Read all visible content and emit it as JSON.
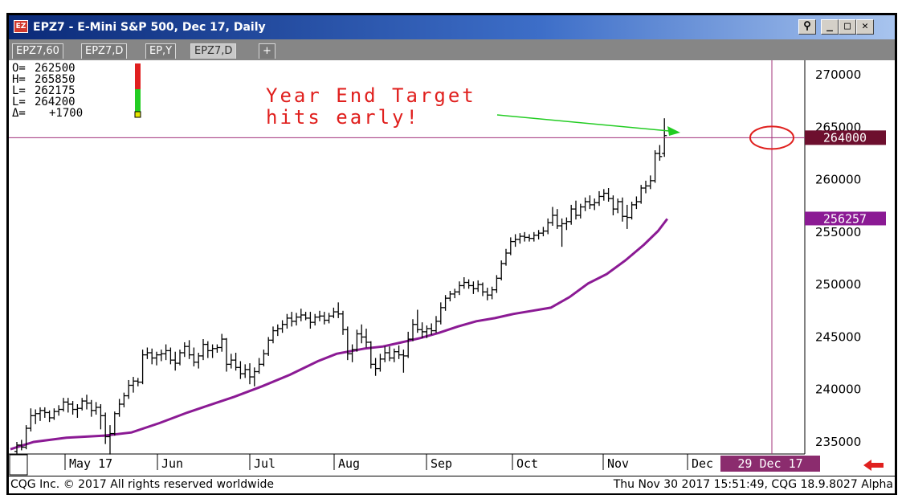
{
  "window": {
    "icon_glyph": "EZ",
    "title": "EPZ7 - E-Mini S&P 500, Dec 17, Daily",
    "buttons": [
      "⚲",
      "_",
      "□",
      "✕"
    ]
  },
  "tabs": [
    {
      "label": "EPZ7,60",
      "active": false
    },
    {
      "label": "EPZ7,D",
      "active": false
    },
    {
      "label": "EP,Y",
      "active": false
    },
    {
      "label": "EPZ7,D",
      "active": true
    },
    {
      "label": "+",
      "active": false
    }
  ],
  "ohlc": {
    "o_label": "O=",
    "o_value": "262500",
    "h_label": "H=",
    "h_value": "265850",
    "l_label": "L=",
    "l_value": "262175",
    "l2_label": "L=",
    "l2_value": "264200",
    "d_label": "Δ=",
    "d_value": "+1700"
  },
  "annotation": {
    "line1": "Year End Target",
    "line2": "hits early!"
  },
  "price_labels": {
    "last": "264000",
    "ma": "256257"
  },
  "date_label": "29 Dec 17",
  "status": {
    "left": "CQG Inc. © 2017 All rights reserved worldwide",
    "right": "Thu Nov 30 2017 15:51:49, CQG 18.9.8027 Alpha"
  },
  "colors": {
    "bars": "#000000",
    "ma_line": "#8b1a94",
    "cursor_line": "#a0307a",
    "annotation_text": "#e0201e",
    "arrow": "#22cc22",
    "circle": "#e0201e",
    "last_price_bg": "#6d0f2e",
    "ma_label_bg": "#8b1a94",
    "date_label_bg": "#8b2c6e",
    "nav_arrow": "#e0201e"
  },
  "chart_data": {
    "type": "ohlc",
    "ylim": [
      233000,
      272000
    ],
    "yticks": [
      "235000",
      "240000",
      "245000",
      "250000",
      "255000",
      "260000",
      "265000",
      "270000"
    ],
    "xticks": [
      "May 17",
      "Jun",
      "Jul",
      "Aug",
      "Sep",
      "Oct",
      "Nov",
      "Dec"
    ],
    "cursor_price": 264000,
    "series": [
      {
        "name": "EPZ7",
        "bars": [
          [
            234100,
            235000,
            233700,
            234700
          ],
          [
            234700,
            235200,
            234200,
            234500
          ],
          [
            234500,
            236600,
            234300,
            236300
          ],
          [
            236300,
            238200,
            236000,
            237500
          ],
          [
            237500,
            238100,
            236700,
            237700
          ],
          [
            237700,
            238300,
            237000,
            238000
          ],
          [
            238000,
            238300,
            237300,
            237800
          ],
          [
            237800,
            238000,
            236900,
            237300
          ],
          [
            237300,
            238200,
            237100,
            237900
          ],
          [
            237900,
            238500,
            237500,
            238100
          ],
          [
            238100,
            239200,
            237900,
            238800
          ],
          [
            238800,
            239200,
            237800,
            238600
          ],
          [
            238600,
            238900,
            237600,
            238100
          ],
          [
            238100,
            238600,
            237300,
            238200
          ],
          [
            238200,
            239200,
            238000,
            238900
          ],
          [
            238900,
            239500,
            238100,
            238700
          ],
          [
            238700,
            239000,
            237400,
            238000
          ],
          [
            238000,
            238800,
            237600,
            238300
          ],
          [
            238300,
            238600,
            236200,
            237500
          ],
          [
            237500,
            237800,
            234800,
            235500
          ],
          [
            235500,
            236600,
            233800,
            235800
          ],
          [
            235800,
            237900,
            235600,
            237700
          ],
          [
            237700,
            239100,
            237400,
            238600
          ],
          [
            238600,
            239700,
            238300,
            239400
          ],
          [
            239400,
            240900,
            239100,
            240400
          ],
          [
            240400,
            241200,
            239700,
            240800
          ],
          [
            240800,
            241100,
            240300,
            240700
          ],
          [
            240700,
            243800,
            240500,
            243300
          ],
          [
            243300,
            244000,
            242900,
            243500
          ],
          [
            243500,
            243900,
            242400,
            243000
          ],
          [
            243000,
            243600,
            242300,
            243300
          ],
          [
            243300,
            243800,
            242700,
            243400
          ],
          [
            243400,
            244300,
            242800,
            243700
          ],
          [
            243700,
            244000,
            242400,
            242800
          ],
          [
            242800,
            243600,
            241800,
            242500
          ],
          [
            242500,
            243800,
            242300,
            243500
          ],
          [
            243500,
            244500,
            243100,
            244100
          ],
          [
            244100,
            244700,
            242900,
            243300
          ],
          [
            243300,
            244000,
            242200,
            242600
          ],
          [
            242600,
            243500,
            242000,
            243200
          ],
          [
            243200,
            244800,
            242800,
            244300
          ],
          [
            244300,
            244600,
            243000,
            243700
          ],
          [
            243700,
            244300,
            243000,
            243900
          ],
          [
            243900,
            244300,
            243500,
            244000
          ],
          [
            244000,
            245300,
            243600,
            244800
          ],
          [
            244800,
            244900,
            241700,
            242400
          ],
          [
            242400,
            243400,
            242000,
            242800
          ],
          [
            242800,
            243500,
            241800,
            242100
          ],
          [
            242100,
            242700,
            241000,
            241500
          ],
          [
            241500,
            242400,
            241100,
            241900
          ],
          [
            241900,
            242500,
            240500,
            241200
          ],
          [
            241200,
            242100,
            240300,
            241700
          ],
          [
            241700,
            243000,
            241500,
            242400
          ],
          [
            242400,
            243800,
            242200,
            243400
          ],
          [
            243400,
            245000,
            243200,
            244700
          ],
          [
            244700,
            246000,
            244400,
            245600
          ],
          [
            245600,
            246200,
            245100,
            245800
          ],
          [
            245800,
            246600,
            245400,
            246200
          ],
          [
            246200,
            247200,
            245800,
            246800
          ],
          [
            246800,
            247400,
            246000,
            246500
          ],
          [
            246500,
            247300,
            246100,
            246900
          ],
          [
            246900,
            247700,
            246500,
            247100
          ],
          [
            247100,
            247400,
            246600,
            246800
          ],
          [
            246800,
            247400,
            245800,
            246400
          ],
          [
            246400,
            247200,
            246100,
            246900
          ],
          [
            246900,
            247500,
            246500,
            247000
          ],
          [
            247000,
            247400,
            246200,
            246600
          ],
          [
            246600,
            247300,
            246300,
            247000
          ],
          [
            247000,
            247800,
            246800,
            247400
          ],
          [
            247400,
            248300,
            246800,
            247200
          ],
          [
            247200,
            247500,
            245200,
            245700
          ],
          [
            245700,
            246000,
            242800,
            243400
          ],
          [
            243400,
            244300,
            242600,
            243800
          ],
          [
            243800,
            245700,
            243600,
            245300
          ],
          [
            245300,
            246200,
            244400,
            245000
          ],
          [
            245000,
            245800,
            244000,
            244500
          ],
          [
            244500,
            244600,
            242000,
            242400
          ],
          [
            242400,
            243000,
            241300,
            242000
          ],
          [
            242000,
            243400,
            241700,
            242900
          ],
          [
            242900,
            244100,
            242600,
            243500
          ],
          [
            243500,
            244100,
            242700,
            243000
          ],
          [
            243000,
            243900,
            242600,
            243600
          ],
          [
            243600,
            244200,
            242900,
            243300
          ],
          [
            243300,
            243800,
            241600,
            243200
          ],
          [
            243200,
            245500,
            243000,
            244800
          ],
          [
            244800,
            246700,
            244600,
            246200
          ],
          [
            246200,
            247600,
            245400,
            245700
          ],
          [
            245700,
            246400,
            244900,
            245500
          ],
          [
            245500,
            246100,
            244900,
            245800
          ],
          [
            245800,
            246300,
            245200,
            245600
          ],
          [
            245600,
            247000,
            245400,
            246500
          ],
          [
            246500,
            248300,
            246200,
            247800
          ],
          [
            247800,
            249000,
            247500,
            248700
          ],
          [
            248700,
            249400,
            248400,
            249100
          ],
          [
            249100,
            249600,
            248700,
            249300
          ],
          [
            249300,
            250300,
            249000,
            249900
          ],
          [
            249900,
            250700,
            249600,
            250200
          ],
          [
            250200,
            250500,
            249600,
            249900
          ],
          [
            249900,
            250300,
            249100,
            249600
          ],
          [
            249600,
            250400,
            249300,
            250000
          ],
          [
            250000,
            250200,
            248900,
            249300
          ],
          [
            249300,
            249700,
            248500,
            249000
          ],
          [
            249000,
            249800,
            248600,
            249500
          ],
          [
            249500,
            250900,
            249200,
            250600
          ],
          [
            250600,
            252300,
            250400,
            252000
          ],
          [
            252000,
            253400,
            251800,
            253000
          ],
          [
            253000,
            254500,
            252800,
            254100
          ],
          [
            254100,
            254800,
            253600,
            254300
          ],
          [
            254300,
            254900,
            253900,
            254600
          ],
          [
            254600,
            255000,
            254100,
            254500
          ],
          [
            254500,
            254800,
            254100,
            254400
          ],
          [
            254400,
            255000,
            254100,
            254700
          ],
          [
            254700,
            255200,
            254300,
            254900
          ],
          [
            254900,
            255500,
            254600,
            255100
          ],
          [
            255100,
            256300,
            254800,
            255900
          ],
          [
            255900,
            257400,
            255600,
            256600
          ],
          [
            256600,
            257200,
            255300,
            255600
          ],
          [
            255600,
            256300,
            253600,
            255800
          ],
          [
            255800,
            256400,
            255200,
            256000
          ],
          [
            256000,
            257600,
            255700,
            257200
          ],
          [
            257200,
            258000,
            256200,
            256600
          ],
          [
            256600,
            257700,
            256300,
            257400
          ],
          [
            257400,
            258300,
            257000,
            257900
          ],
          [
            257900,
            258500,
            257200,
            257600
          ],
          [
            257600,
            258200,
            257100,
            257800
          ],
          [
            257800,
            258900,
            257500,
            258400
          ],
          [
            258400,
            259100,
            258000,
            258700
          ],
          [
            258700,
            259200,
            257900,
            258200
          ],
          [
            258200,
            258500,
            256600,
            257200
          ],
          [
            257200,
            258200,
            256800,
            257900
          ],
          [
            257900,
            258300,
            256000,
            256500
          ],
          [
            256500,
            257600,
            255300,
            256400
          ],
          [
            256400,
            257900,
            256200,
            257600
          ],
          [
            257600,
            258400,
            257200,
            257900
          ],
          [
            257900,
            259500,
            257700,
            259200
          ],
          [
            259200,
            259900,
            258700,
            259400
          ],
          [
            259400,
            260400,
            259100,
            259900
          ],
          [
            259900,
            262800,
            259700,
            262500
          ],
          [
            262500,
            263300,
            261800,
            262200
          ],
          [
            262500,
            265850,
            262175,
            264200
          ]
        ]
      },
      {
        "name": "MA",
        "values": [
          [
            0,
            234300
          ],
          [
            5,
            235000
          ],
          [
            12,
            235400
          ],
          [
            20,
            235600
          ],
          [
            26,
            235900
          ],
          [
            32,
            236800
          ],
          [
            38,
            237800
          ],
          [
            44,
            238700
          ],
          [
            48,
            239300
          ],
          [
            54,
            240300
          ],
          [
            60,
            241400
          ],
          [
            66,
            242700
          ],
          [
            70,
            243400
          ],
          [
            76,
            243900
          ],
          [
            80,
            244100
          ],
          [
            84,
            244500
          ],
          [
            88,
            244900
          ],
          [
            92,
            245400
          ],
          [
            96,
            246000
          ],
          [
            100,
            246500
          ],
          [
            104,
            246800
          ],
          [
            108,
            247200
          ],
          [
            112,
            247500
          ],
          [
            116,
            247800
          ],
          [
            120,
            248800
          ],
          [
            124,
            250100
          ],
          [
            128,
            251000
          ],
          [
            132,
            252300
          ],
          [
            136,
            253800
          ],
          [
            139,
            255100
          ],
          [
            141,
            256257
          ]
        ]
      }
    ]
  }
}
